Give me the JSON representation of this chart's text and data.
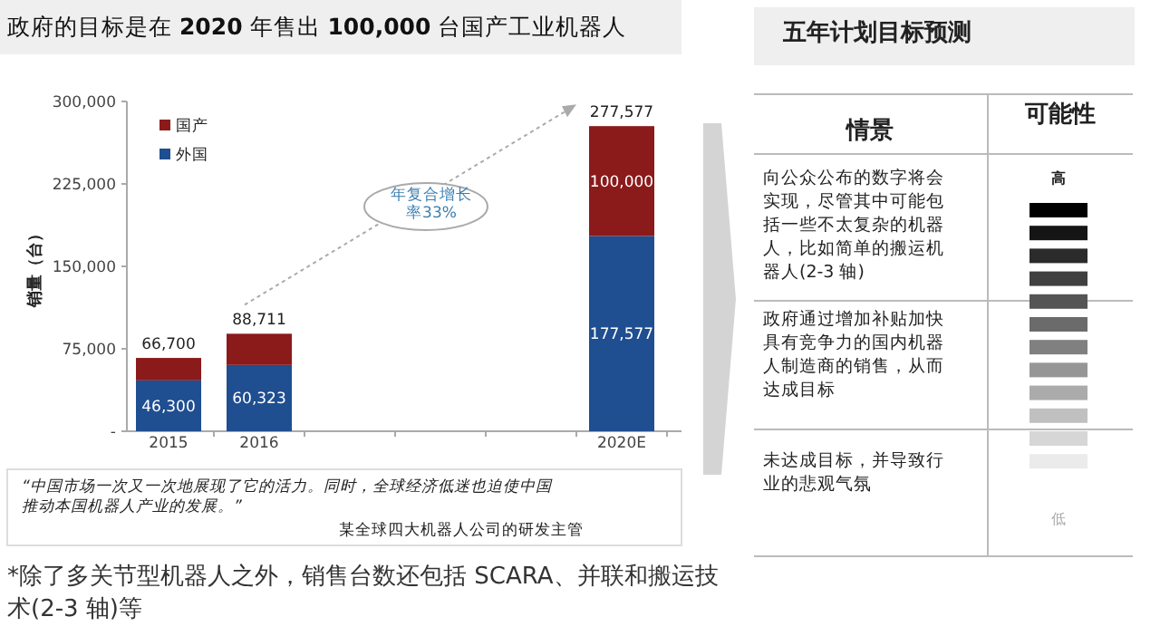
{
  "chart_data": [
    {
      "type": "bar",
      "title": "政府的目标是在 **2020** 年售出 **100,000** 台国产工业机器人",
      "ylabel": "销量（台）",
      "categories": [
        "2015",
        "2016",
        null,
        null,
        null,
        "2020E"
      ],
      "series": [
        {
          "name": "外国",
          "color": "#1f4e91",
          "values": [
            46300,
            60323,
            null,
            null,
            null,
            177577
          ],
          "value_labels": [
            "46,300",
            "60,323",
            null,
            null,
            null,
            "177,577"
          ]
        },
        {
          "name": "国产",
          "color": "#8b1a1a",
          "values": [
            20400,
            28388,
            null,
            null,
            null,
            100000
          ],
          "value_labels": [
            null,
            null,
            null,
            null,
            null,
            "100,000"
          ]
        }
      ],
      "totals": [
        "66,700",
        "88,711",
        null,
        null,
        null,
        "277,577"
      ],
      "stacked": true,
      "legend": "top left",
      "grid": false,
      "ylim": [
        0,
        300000
      ],
      "yticks": [
        {
          "value": 0,
          "label": "-"
        },
        {
          "value": 75000,
          "label": "75,000"
        },
        {
          "value": 150000,
          "label": "150,000"
        },
        {
          "value": 225000,
          "label": "225,000"
        },
        {
          "value": 300000,
          "label": "300,000"
        }
      ],
      "annotations": [
        "年复合增长率33%",
        "“中国市场一次又一次地展现了它的活力。同时，全球经济低迷也迫使中国推动本国机器人产业的发展。”",
        "某全球四大机器人公司的研发主管",
        "*除了多关节型机器人之外，销售台数还包括 SCARA、并联和搬运技术(2-3 轴)等"
      ]
    },
    {
      "type": "other",
      "title": "五年计划目标预测",
      "annotations": [
        "情景",
        "可能性",
        "向公众公布的数字将会实现，尽管其中可能包括一些不太复杂的机器人，比如简单的搬运机器人(2-3 轴)",
        "政府通过增加补贴加快具有竞争力的国内机器人制造商的销售，从而达成目标",
        "未达成目标，并导致行业的悲观气氛",
        "高",
        "低"
      ]
    }
  ]
}
